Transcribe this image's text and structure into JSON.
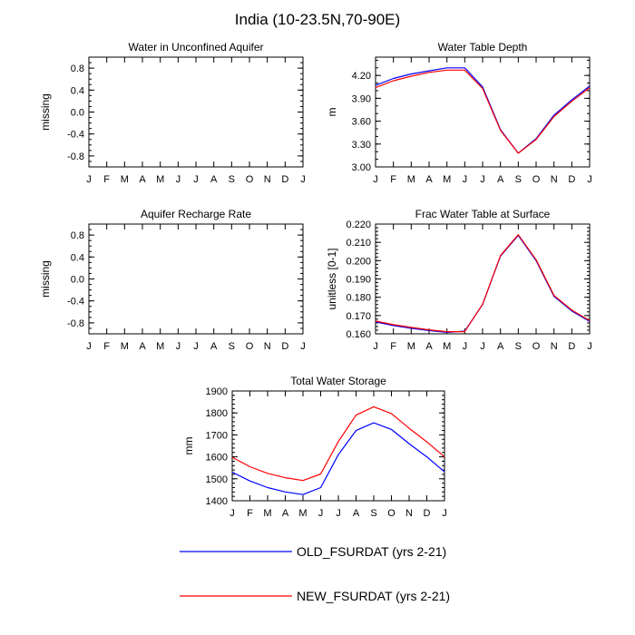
{
  "figure_title": "India (10-23.5N,70-90E)",
  "legend": {
    "entries": [
      {
        "label": "OLD_FSURDAT (yrs 2-21)",
        "color": "#0000ff"
      },
      {
        "label": "NEW_FSURDAT (yrs 2-21)",
        "color": "#ff0000"
      }
    ]
  },
  "chart_data": [
    {
      "id": "water-unconfined-aquifer",
      "type": "line",
      "title": "Water in Unconfined Aquifer",
      "xlabel": "",
      "ylabel": "missing",
      "ylim": [
        -1.0,
        1.0
      ],
      "yticks": [
        -0.8,
        -0.4,
        0.0,
        0.4,
        0.8
      ],
      "ytick_labels": [
        "-0.8",
        "-0.4",
        "0.0",
        "0.4",
        "0.8"
      ],
      "yminor": [
        -1.0,
        -0.9,
        -0.8,
        -0.7,
        -0.6,
        -0.5,
        -0.4,
        -0.3,
        -0.2,
        -0.1,
        0.0,
        0.1,
        0.2,
        0.3,
        0.4,
        0.5,
        0.6,
        0.7,
        0.8,
        0.9,
        1.0
      ],
      "categories": [
        "J",
        "F",
        "M",
        "A",
        "M",
        "J",
        "J",
        "A",
        "S",
        "O",
        "N",
        "D",
        "J"
      ],
      "series": []
    },
    {
      "id": "water-table-depth",
      "type": "line",
      "title": "Water Table Depth",
      "xlabel": "",
      "ylabel": "m",
      "ylim": [
        3.0,
        4.44
      ],
      "yticks": [
        3.0,
        3.3,
        3.6,
        3.9,
        4.2
      ],
      "ytick_labels": [
        "3.00",
        "3.30",
        "3.60",
        "3.90",
        "4.20"
      ],
      "yminor": [
        3.0,
        3.1,
        3.2,
        3.3,
        3.4,
        3.5,
        3.6,
        3.7,
        3.8,
        3.9,
        4.0,
        4.1,
        4.2,
        4.3,
        4.4
      ],
      "categories": [
        "J",
        "F",
        "M",
        "A",
        "M",
        "J",
        "J",
        "A",
        "S",
        "O",
        "N",
        "D",
        "J"
      ],
      "series": [
        {
          "name": "OLD_FSURDAT (yrs 2-21)",
          "color": "#0000ff",
          "values": [
            4.07,
            4.16,
            4.22,
            4.26,
            4.3,
            4.3,
            4.05,
            3.49,
            3.18,
            3.37,
            3.68,
            3.88,
            4.06
          ]
        },
        {
          "name": "NEW_FSURDAT (yrs 2-21)",
          "color": "#ff0000",
          "values": [
            4.04,
            4.13,
            4.19,
            4.24,
            4.27,
            4.27,
            4.03,
            3.48,
            3.18,
            3.36,
            3.66,
            3.86,
            4.04
          ]
        }
      ]
    },
    {
      "id": "aquifer-recharge-rate",
      "type": "line",
      "title": "Aquifer Recharge Rate",
      "xlabel": "",
      "ylabel": "missing",
      "ylim": [
        -1.0,
        1.0
      ],
      "yticks": [
        -0.8,
        -0.4,
        0.0,
        0.4,
        0.8
      ],
      "ytick_labels": [
        "-0.8",
        "-0.4",
        "0.0",
        "0.4",
        "0.8"
      ],
      "yminor": [
        -1.0,
        -0.9,
        -0.8,
        -0.7,
        -0.6,
        -0.5,
        -0.4,
        -0.3,
        -0.2,
        -0.1,
        0.0,
        0.1,
        0.2,
        0.3,
        0.4,
        0.5,
        0.6,
        0.7,
        0.8,
        0.9,
        1.0
      ],
      "categories": [
        "J",
        "F",
        "M",
        "A",
        "M",
        "J",
        "J",
        "A",
        "S",
        "O",
        "N",
        "D",
        "J"
      ],
      "series": []
    },
    {
      "id": "frac-water-table-surface",
      "type": "line",
      "title": "Frac Water Table at Surface",
      "xlabel": "",
      "ylabel": "unitless [0-1]",
      "ylim": [
        0.16,
        0.22
      ],
      "yticks": [
        0.16,
        0.17,
        0.18,
        0.19,
        0.2,
        0.21,
        0.22
      ],
      "ytick_labels": [
        "0.160",
        "0.170",
        "0.180",
        "0.190",
        "0.200",
        "0.210",
        "0.220"
      ],
      "yminor": [
        0.16,
        0.162,
        0.164,
        0.166,
        0.168,
        0.17,
        0.172,
        0.174,
        0.176,
        0.178,
        0.18,
        0.182,
        0.184,
        0.186,
        0.188,
        0.19,
        0.192,
        0.194,
        0.196,
        0.198,
        0.2,
        0.202,
        0.204,
        0.206,
        0.208,
        0.21,
        0.212,
        0.214,
        0.216,
        0.218,
        0.22
      ],
      "categories": [
        "J",
        "F",
        "M",
        "A",
        "M",
        "J",
        "J",
        "A",
        "S",
        "O",
        "N",
        "D",
        "J"
      ],
      "series": [
        {
          "name": "OLD_FSURDAT (yrs 2-21)",
          "color": "#0000ff",
          "values": [
            0.1665,
            0.1645,
            0.163,
            0.1618,
            0.1608,
            0.1615,
            0.176,
            0.2025,
            0.2138,
            0.2,
            0.1805,
            0.1725,
            0.1668
          ]
        },
        {
          "name": "NEW_FSURDAT (yrs 2-21)",
          "color": "#ff0000",
          "values": [
            0.167,
            0.165,
            0.1635,
            0.1622,
            0.1612,
            0.1612,
            0.1762,
            0.2028,
            0.2142,
            0.2005,
            0.181,
            0.173,
            0.1672
          ]
        }
      ]
    },
    {
      "id": "total-water-storage",
      "type": "line",
      "title": "Total Water Storage",
      "xlabel": "",
      "ylabel": "mm",
      "ylim": [
        1400,
        1900
      ],
      "yticks": [
        1400,
        1500,
        1600,
        1700,
        1800,
        1900
      ],
      "ytick_labels": [
        "1400",
        "1500",
        "1600",
        "1700",
        "1800",
        "1900"
      ],
      "yminor": [
        1400,
        1420,
        1440,
        1460,
        1480,
        1500,
        1520,
        1540,
        1560,
        1580,
        1600,
        1620,
        1640,
        1660,
        1680,
        1700,
        1720,
        1740,
        1760,
        1780,
        1800,
        1820,
        1840,
        1860,
        1880,
        1900
      ],
      "categories": [
        "J",
        "F",
        "M",
        "A",
        "M",
        "J",
        "J",
        "A",
        "S",
        "O",
        "N",
        "D",
        "J"
      ],
      "series": [
        {
          "name": "OLD_FSURDAT (yrs 2-21)",
          "color": "#0000ff",
          "values": [
            1530,
            1490,
            1460,
            1440,
            1428,
            1460,
            1610,
            1720,
            1755,
            1725,
            1660,
            1600,
            1532
          ]
        },
        {
          "name": "NEW_FSURDAT (yrs 2-21)",
          "color": "#ff0000",
          "values": [
            1598,
            1555,
            1525,
            1505,
            1492,
            1522,
            1670,
            1790,
            1828,
            1797,
            1730,
            1668,
            1600
          ]
        }
      ]
    }
  ]
}
